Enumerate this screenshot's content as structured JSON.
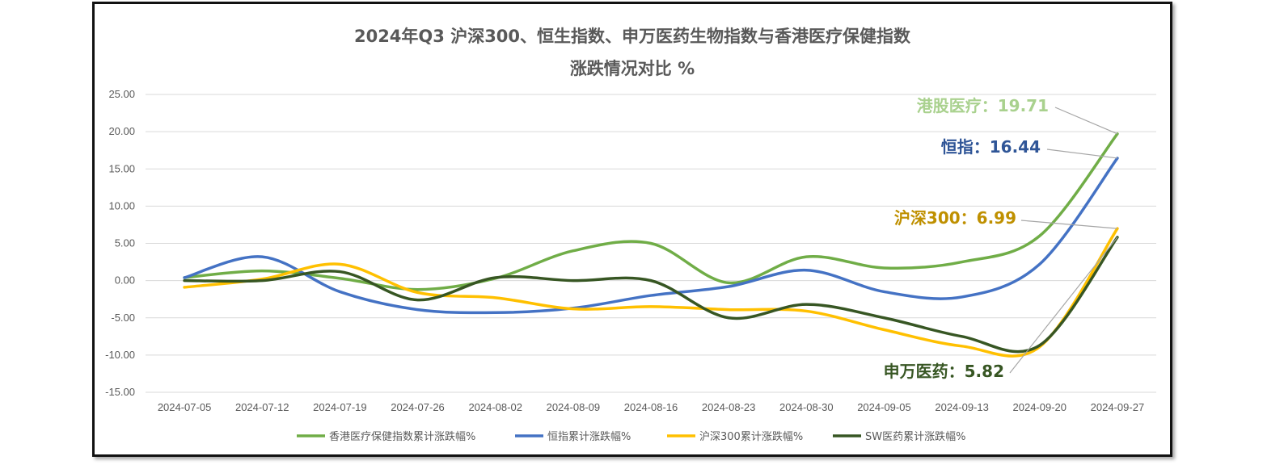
{
  "chart_data": {
    "type": "line",
    "title": "2024年Q3 沪深300、恒生指数、申万医药生物指数与香港医疗保健指数",
    "subtitle": "涨跌情况对比 %",
    "categories": [
      "2024-07-05",
      "2024-07-12",
      "2024-07-19",
      "2024-07-26",
      "2024-08-02",
      "2024-08-09",
      "2024-08-16",
      "2024-08-23",
      "2024-08-30",
      "2024-09-05",
      "2024-09-13",
      "2024-09-20",
      "2024-09-27"
    ],
    "ylim": [
      -15,
      25
    ],
    "yticks": [
      "-15.00",
      "-10.00",
      "-5.00",
      "0.00",
      "5.00",
      "10.00",
      "15.00",
      "20.00",
      "25.00"
    ],
    "grid": true,
    "legend_position": "bottom",
    "series": [
      {
        "name": "香港医疗保健指数累计涨跌幅%",
        "color": "#70ad47",
        "values": [
          0.4,
          1.3,
          0.3,
          -1.2,
          0.3,
          4.0,
          5.0,
          -0.3,
          3.2,
          1.7,
          2.5,
          6.0,
          19.71
        ]
      },
      {
        "name": "恒指累计涨跌幅%",
        "color": "#4472c4",
        "values": [
          0.4,
          3.2,
          -1.5,
          -3.9,
          -4.3,
          -3.7,
          -2.0,
          -0.8,
          1.4,
          -1.5,
          -2.2,
          2.2,
          16.44
        ]
      },
      {
        "name": "沪深300累计涨跌幅%",
        "color": "#ffc000",
        "values": [
          -0.9,
          0.2,
          2.2,
          -1.6,
          -2.3,
          -3.8,
          -3.5,
          -3.9,
          -4.1,
          -6.6,
          -8.8,
          -8.9,
          6.99
        ]
      },
      {
        "name": "SW医药累计涨跌幅%",
        "color": "#375623",
        "values": [
          0.0,
          0.0,
          1.2,
          -2.6,
          0.4,
          0.0,
          0.0,
          -5.0,
          -3.2,
          -5.0,
          -7.5,
          -8.7,
          5.82
        ]
      }
    ],
    "annotations": [
      {
        "text": "港股医疗：19.71",
        "color": "#a9d18e",
        "series": 0
      },
      {
        "text": "恒指：16.44",
        "color": "#2f5597",
        "series": 1
      },
      {
        "text": "沪深300：6.99",
        "color": "#bf9000",
        "series": 2
      },
      {
        "text": "申万医药：5.82",
        "color": "#375623",
        "series": 3
      }
    ]
  }
}
